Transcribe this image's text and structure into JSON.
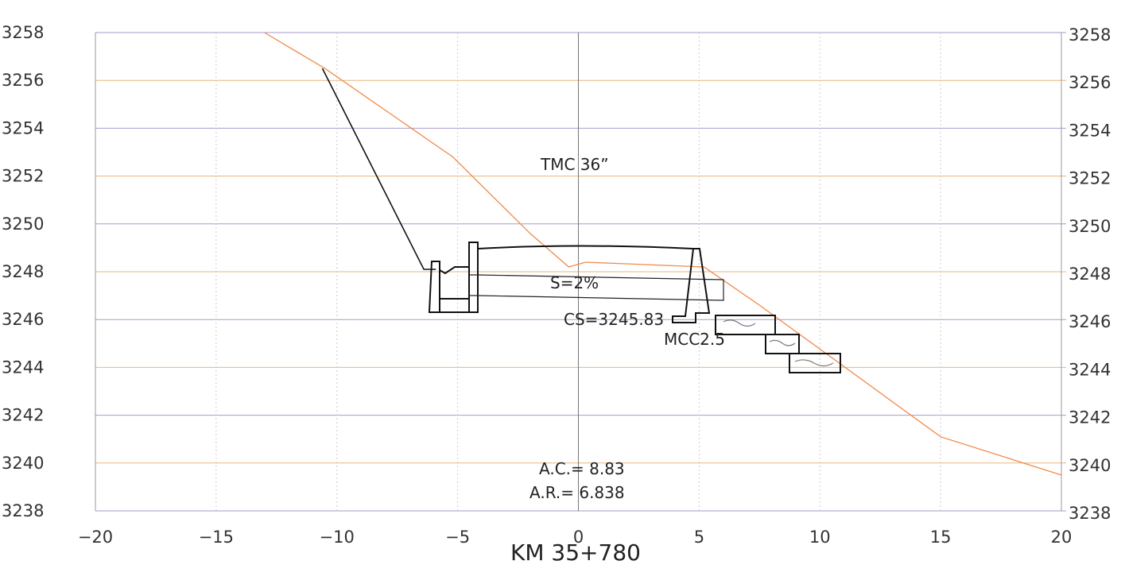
{
  "chart_data": {
    "type": "line",
    "title": "",
    "xlabel": "KM 35+780",
    "ylabel": "",
    "xlim": [
      -20,
      20
    ],
    "ylim": [
      3238,
      3258
    ],
    "x_ticks": [
      "−20",
      "−15",
      "−10",
      "−5",
      "0",
      "5",
      "10",
      "15",
      "20"
    ],
    "y_ticks": [
      "3258",
      "3256",
      "3254",
      "3252",
      "3250",
      "3248",
      "3246",
      "3244",
      "3242",
      "3240",
      "3238"
    ],
    "grid": true,
    "grid_colors": {
      "horizontal_odd": "#a79ac9",
      "horizontal_even": "#e8b77d",
      "vertical": "#cccccc",
      "center": "#777777"
    },
    "series": [
      {
        "color": "#f08a4b",
        "points": [
          [
            -13.0,
            3258.0
          ],
          [
            -10.5,
            3256.5
          ],
          [
            -5.2,
            3252.8
          ],
          [
            -2.0,
            3249.6
          ],
          [
            -0.4,
            3248.2
          ],
          [
            0.3,
            3248.4
          ],
          [
            5.2,
            3248.2
          ],
          [
            7.5,
            3246.6
          ],
          [
            15.0,
            3241.1
          ],
          [
            20.0,
            3239.5
          ]
        ]
      },
      {
        "color": "#111111",
        "points": [
          [
            -10.6,
            3256.5
          ],
          [
            -6.4,
            3248.1
          ],
          [
            -5.9,
            3248.1
          ]
        ]
      }
    ],
    "annotations": {
      "tmc": "TMC 36”",
      "slope": "S=2%",
      "cs": "CS=3245.83",
      "mcc": "MCC2.5",
      "ac": "A.C.= 8.83",
      "ar": "A.R.= 6.838"
    }
  }
}
